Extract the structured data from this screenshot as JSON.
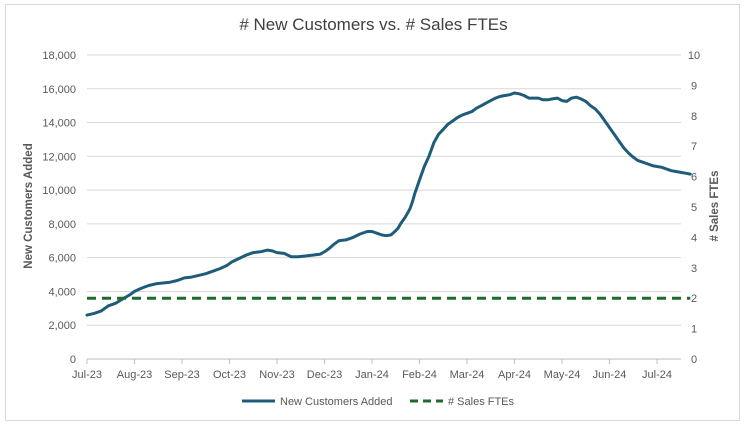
{
  "chart_data": {
    "type": "line",
    "title": "# New Customers vs. # Sales FTEs",
    "y_left_label": "New Customers Added",
    "y_right_label": "# Sales FTEs",
    "y_left_range": [
      0,
      18000
    ],
    "y_right_range": [
      0,
      10
    ],
    "y_left_ticks": [
      "0",
      "2,000",
      "4,000",
      "6,000",
      "8,000",
      "10,000",
      "12,000",
      "14,000",
      "16,000",
      "18,000"
    ],
    "y_right_ticks": [
      "0",
      "1",
      "2",
      "3",
      "4",
      "5",
      "6",
      "7",
      "8",
      "9",
      "10"
    ],
    "x_ticks": [
      "Jul-23",
      "Aug-23",
      "Sep-23",
      "Oct-23",
      "Nov-23",
      "Dec-23",
      "Jan-24",
      "Feb-24",
      "Mar-24",
      "Apr-24",
      "May-24",
      "Jun-24",
      "Jul-24"
    ],
    "x_range_months": [
      0,
      12.7
    ],
    "gridlines": "horizontal",
    "legend_position": "bottom",
    "colors": {
      "customers": "#1f5c7a",
      "ftes": "#1e6b30",
      "grid": "#d9d9d9",
      "axis": "#bfbfbf"
    },
    "series": [
      {
        "name": "New Customers Added",
        "axis": "left",
        "style": "solid",
        "points": [
          [
            0.0,
            2600
          ],
          [
            0.15,
            2700
          ],
          [
            0.3,
            2850
          ],
          [
            0.45,
            3150
          ],
          [
            0.6,
            3300
          ],
          [
            0.75,
            3550
          ],
          [
            0.9,
            3800
          ],
          [
            1.0,
            4000
          ],
          [
            1.15,
            4200
          ],
          [
            1.3,
            4350
          ],
          [
            1.45,
            4450
          ],
          [
            1.6,
            4500
          ],
          [
            1.75,
            4550
          ],
          [
            1.9,
            4650
          ],
          [
            2.05,
            4800
          ],
          [
            2.2,
            4850
          ],
          [
            2.35,
            4950
          ],
          [
            2.5,
            5050
          ],
          [
            2.65,
            5200
          ],
          [
            2.8,
            5350
          ],
          [
            2.95,
            5550
          ],
          [
            3.05,
            5750
          ],
          [
            3.2,
            5950
          ],
          [
            3.35,
            6150
          ],
          [
            3.5,
            6300
          ],
          [
            3.65,
            6350
          ],
          [
            3.8,
            6450
          ],
          [
            3.9,
            6400
          ],
          [
            4.0,
            6300
          ],
          [
            4.15,
            6250
          ],
          [
            4.3,
            6050
          ],
          [
            4.45,
            6050
          ],
          [
            4.6,
            6100
          ],
          [
            4.75,
            6150
          ],
          [
            4.9,
            6200
          ],
          [
            5.0,
            6350
          ],
          [
            5.1,
            6550
          ],
          [
            5.2,
            6800
          ],
          [
            5.3,
            7000
          ],
          [
            5.45,
            7050
          ],
          [
            5.6,
            7200
          ],
          [
            5.75,
            7400
          ],
          [
            5.9,
            7550
          ],
          [
            6.0,
            7550
          ],
          [
            6.1,
            7450
          ],
          [
            6.2,
            7350
          ],
          [
            6.3,
            7300
          ],
          [
            6.4,
            7350
          ],
          [
            6.5,
            7600
          ],
          [
            6.55,
            7750
          ],
          [
            6.6,
            8000
          ],
          [
            6.7,
            8400
          ],
          [
            6.8,
            8900
          ],
          [
            6.85,
            9300
          ],
          [
            6.9,
            9800
          ],
          [
            7.0,
            10600
          ],
          [
            7.1,
            11400
          ],
          [
            7.2,
            12000
          ],
          [
            7.3,
            12800
          ],
          [
            7.4,
            13300
          ],
          [
            7.5,
            13600
          ],
          [
            7.6,
            13900
          ],
          [
            7.7,
            14100
          ],
          [
            7.8,
            14300
          ],
          [
            7.9,
            14450
          ],
          [
            8.0,
            14550
          ],
          [
            8.1,
            14650
          ],
          [
            8.2,
            14850
          ],
          [
            8.3,
            15000
          ],
          [
            8.4,
            15150
          ],
          [
            8.5,
            15300
          ],
          [
            8.6,
            15450
          ],
          [
            8.7,
            15550
          ],
          [
            8.8,
            15600
          ],
          [
            8.9,
            15650
          ],
          [
            9.0,
            15750
          ],
          [
            9.1,
            15700
          ],
          [
            9.2,
            15600
          ],
          [
            9.3,
            15450
          ],
          [
            9.4,
            15450
          ],
          [
            9.5,
            15450
          ],
          [
            9.6,
            15350
          ],
          [
            9.7,
            15350
          ],
          [
            9.8,
            15400
          ],
          [
            9.9,
            15450
          ],
          [
            10.0,
            15300
          ],
          [
            10.1,
            15250
          ],
          [
            10.2,
            15450
          ],
          [
            10.3,
            15500
          ],
          [
            10.4,
            15400
          ],
          [
            10.5,
            15250
          ],
          [
            10.6,
            15000
          ],
          [
            10.7,
            14800
          ],
          [
            10.8,
            14500
          ],
          [
            10.9,
            14100
          ],
          [
            11.0,
            13700
          ],
          [
            11.1,
            13300
          ],
          [
            11.2,
            12900
          ],
          [
            11.3,
            12500
          ],
          [
            11.4,
            12200
          ],
          [
            11.5,
            11950
          ],
          [
            11.6,
            11750
          ],
          [
            11.7,
            11650
          ],
          [
            11.8,
            11550
          ],
          [
            11.9,
            11450
          ],
          [
            12.0,
            11400
          ],
          [
            12.1,
            11350
          ],
          [
            12.2,
            11250
          ],
          [
            12.3,
            11150
          ],
          [
            12.4,
            11100
          ],
          [
            12.5,
            11050
          ],
          [
            12.6,
            11000
          ],
          [
            12.7,
            10950
          ]
        ]
      },
      {
        "name": "# Sales FTEs",
        "axis": "right",
        "style": "dashed",
        "points": [
          [
            0.0,
            2
          ],
          [
            12.7,
            2
          ]
        ]
      }
    ]
  }
}
